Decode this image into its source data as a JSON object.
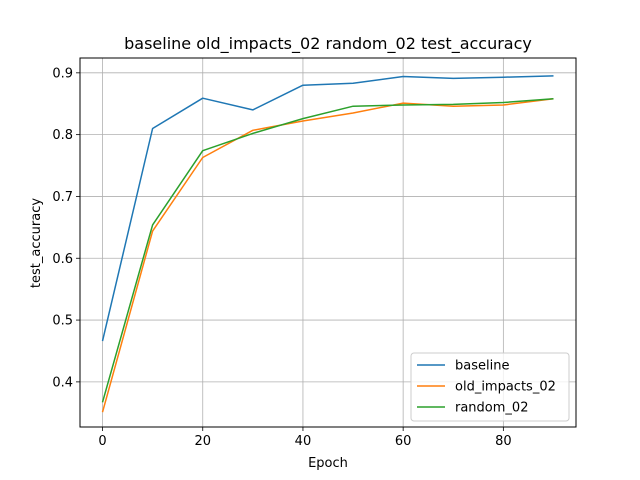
{
  "chart_data": {
    "type": "line",
    "title": "baseline old_impacts_02 random_02 test_accuracy",
    "xlabel": "Epoch",
    "ylabel": "test_accuracy",
    "xlim": [
      -4.5,
      94.5
    ],
    "ylim": [
      0.327,
      0.924
    ],
    "xticks": [
      0,
      20,
      40,
      60,
      80
    ],
    "yticks": [
      0.4,
      0.5,
      0.6,
      0.7,
      0.8,
      0.9
    ],
    "xtick_labels": [
      "0",
      "20",
      "40",
      "60",
      "80"
    ],
    "ytick_labels": [
      "0.4",
      "0.5",
      "0.6",
      "0.7",
      "0.8",
      "0.9"
    ],
    "grid": true,
    "legend_position": "lower-right",
    "x": [
      0,
      10,
      20,
      30,
      40,
      50,
      60,
      70,
      80,
      90
    ],
    "series": [
      {
        "name": "baseline",
        "color": "#1f77b4",
        "values": [
          0.466,
          0.81,
          0.859,
          0.84,
          0.88,
          0.883,
          0.894,
          0.891,
          0.893,
          0.895
        ]
      },
      {
        "name": "old_impacts_02",
        "color": "#ff7f0e",
        "values": [
          0.351,
          0.644,
          0.763,
          0.807,
          0.822,
          0.835,
          0.851,
          0.846,
          0.848,
          0.858
        ]
      },
      {
        "name": "random_02",
        "color": "#2ca02c",
        "values": [
          0.367,
          0.654,
          0.774,
          0.802,
          0.826,
          0.846,
          0.848,
          0.849,
          0.852,
          0.858
        ]
      }
    ]
  }
}
